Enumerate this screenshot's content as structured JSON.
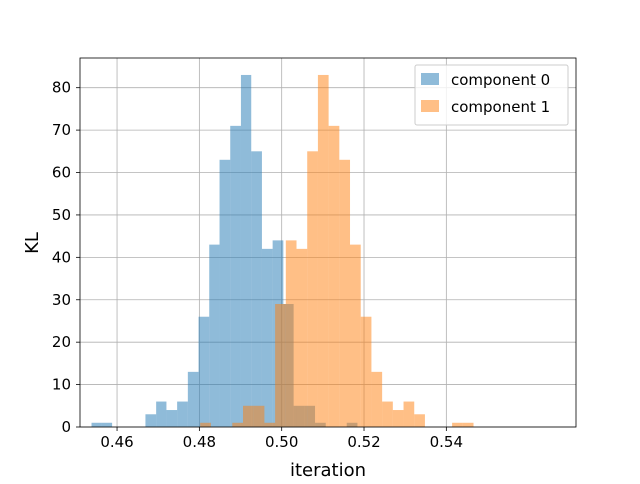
{
  "chart_data": {
    "type": "histogram",
    "xlabel": "iteration",
    "ylabel": "KL",
    "xlim": [
      0.451,
      0.5715
    ],
    "ylim": [
      0,
      87
    ],
    "xticks": [
      0.46,
      0.48,
      0.5,
      0.52,
      0.54
    ],
    "xtick_labels": [
      "0.46",
      "0.48",
      "0.50",
      "0.52",
      "0.54"
    ],
    "yticks": [
      0,
      10,
      20,
      30,
      40,
      50,
      60,
      70,
      80
    ],
    "ytick_labels": [
      "0",
      "10",
      "20",
      "30",
      "40",
      "50",
      "60",
      "70",
      "80"
    ],
    "grid": true,
    "legend_position": "upper right",
    "series": [
      {
        "name": "component 0",
        "color": "#1f77b4",
        "alpha": 0.5,
        "bins": [
          {
            "x0": 0.4538,
            "x1": 0.4562,
            "count": 1
          },
          {
            "x0": 0.4562,
            "x1": 0.4588,
            "count": 1
          },
          {
            "x0": 0.4669,
            "x1": 0.4695,
            "count": 3
          },
          {
            "x0": 0.4695,
            "x1": 0.472,
            "count": 6
          },
          {
            "x0": 0.472,
            "x1": 0.4746,
            "count": 4
          },
          {
            "x0": 0.4746,
            "x1": 0.4772,
            "count": 6
          },
          {
            "x0": 0.4772,
            "x1": 0.4798,
            "count": 13
          },
          {
            "x0": 0.4798,
            "x1": 0.4824,
            "count": 26
          },
          {
            "x0": 0.4824,
            "x1": 0.4849,
            "count": 43
          },
          {
            "x0": 0.4849,
            "x1": 0.4875,
            "count": 63
          },
          {
            "x0": 0.4875,
            "x1": 0.4901,
            "count": 71
          },
          {
            "x0": 0.4901,
            "x1": 0.4926,
            "count": 83
          },
          {
            "x0": 0.4926,
            "x1": 0.4952,
            "count": 65
          },
          {
            "x0": 0.4952,
            "x1": 0.4978,
            "count": 42
          },
          {
            "x0": 0.4978,
            "x1": 0.5004,
            "count": 44
          },
          {
            "x0": 0.5004,
            "x1": 0.5029,
            "count": 29
          },
          {
            "x0": 0.5029,
            "x1": 0.5055,
            "count": 5
          },
          {
            "x0": 0.5055,
            "x1": 0.5081,
            "count": 5
          },
          {
            "x0": 0.5081,
            "x1": 0.5107,
            "count": 1
          },
          {
            "x0": 0.5158,
            "x1": 0.5184,
            "count": 1
          }
        ]
      },
      {
        "name": "component 1",
        "color": "#ff7f0e",
        "alpha": 0.5,
        "bins": [
          {
            "x0": 0.4802,
            "x1": 0.4828,
            "count": 1
          },
          {
            "x0": 0.488,
            "x1": 0.4906,
            "count": 1
          },
          {
            "x0": 0.4906,
            "x1": 0.4932,
            "count": 5
          },
          {
            "x0": 0.4932,
            "x1": 0.4958,
            "count": 5
          },
          {
            "x0": 0.4958,
            "x1": 0.4984,
            "count": 1
          },
          {
            "x0": 0.4984,
            "x1": 0.501,
            "count": 29
          },
          {
            "x0": 0.501,
            "x1": 0.5036,
            "count": 44
          },
          {
            "x0": 0.5036,
            "x1": 0.5062,
            "count": 42
          },
          {
            "x0": 0.5062,
            "x1": 0.5088,
            "count": 65
          },
          {
            "x0": 0.5088,
            "x1": 0.5114,
            "count": 83
          },
          {
            "x0": 0.5114,
            "x1": 0.514,
            "count": 71
          },
          {
            "x0": 0.514,
            "x1": 0.5166,
            "count": 63
          },
          {
            "x0": 0.5166,
            "x1": 0.5192,
            "count": 43
          },
          {
            "x0": 0.5192,
            "x1": 0.5218,
            "count": 26
          },
          {
            "x0": 0.5218,
            "x1": 0.5244,
            "count": 13
          },
          {
            "x0": 0.5244,
            "x1": 0.527,
            "count": 6
          },
          {
            "x0": 0.527,
            "x1": 0.5296,
            "count": 4
          },
          {
            "x0": 0.5296,
            "x1": 0.5322,
            "count": 6
          },
          {
            "x0": 0.5322,
            "x1": 0.5348,
            "count": 3
          },
          {
            "x0": 0.5414,
            "x1": 0.544,
            "count": 1
          },
          {
            "x0": 0.544,
            "x1": 0.5466,
            "count": 1
          }
        ]
      }
    ]
  }
}
